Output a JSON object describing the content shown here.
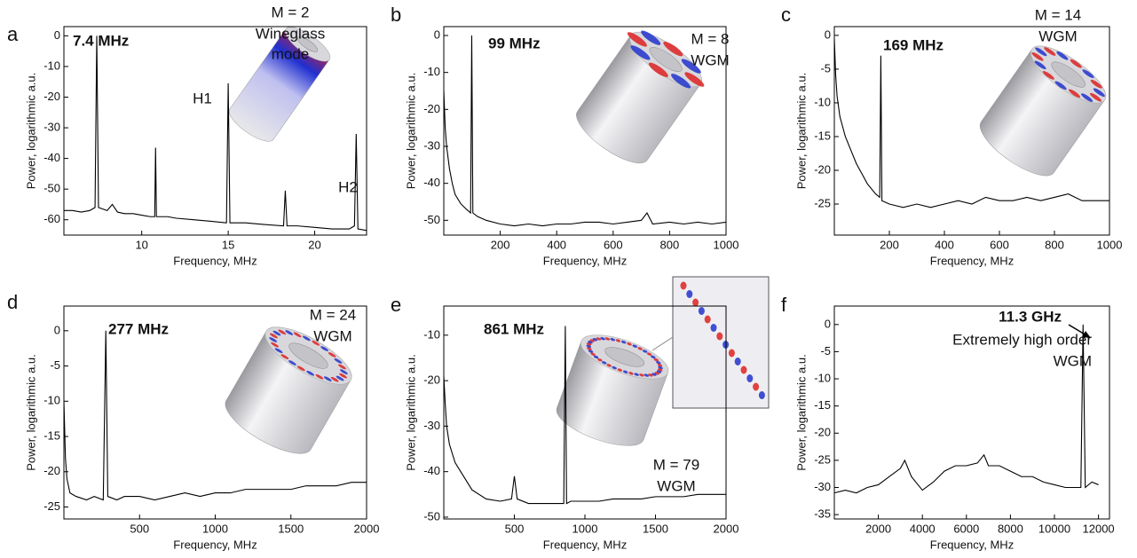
{
  "chart_data": [
    {
      "type": "line",
      "panel": "a",
      "peak_label": "7.4 MHz",
      "annotations": [
        "M = 2",
        "Wineglass",
        "mode",
        "H1",
        "H2"
      ],
      "x_label": "Frequency, MHz",
      "y_label": "Power, logarithmic a.u.",
      "x": [
        5.5,
        6,
        6.5,
        7,
        7.3,
        7.4,
        7.5,
        8,
        8.3,
        8.6,
        9,
        9.5,
        10,
        10.5,
        10.75,
        10.8,
        10.85,
        11.5,
        12,
        13,
        14,
        14.9,
        15,
        15.1,
        16,
        17,
        18.2,
        18.3,
        18.4,
        19,
        20,
        21,
        22,
        22.3,
        22.4,
        22.5,
        23
      ],
      "series": [
        {
          "color": "#000000",
          "values": [
            -57,
            -57,
            -57.5,
            -57,
            -56,
            0,
            -56,
            -57,
            -55,
            -57.5,
            -58,
            -58,
            -58.5,
            -59,
            -59,
            -36.5,
            -59,
            -59,
            -59.5,
            -60,
            -60.5,
            -61,
            -15.5,
            -61,
            -61,
            -61.5,
            -62,
            -50.5,
            -62,
            -62,
            -62.5,
            -63,
            -63,
            -62,
            -32,
            -63,
            -63.5
          ]
        }
      ],
      "xlim": [
        5.5,
        23
      ],
      "ylim": [
        -65,
        3
      ],
      "xticks": [
        10,
        15,
        20
      ],
      "yticks": [
        0,
        -10,
        -20,
        -30,
        -40,
        -50,
        -60
      ]
    },
    {
      "type": "line",
      "panel": "b",
      "peak_label": "99 MHz",
      "annotations": [
        "M = 8",
        "WGM"
      ],
      "x_label": "Frequency, MHz",
      "y_label": "Power, logarithmic a.u.",
      "x": [
        0,
        5,
        10,
        20,
        30,
        40,
        60,
        80,
        95,
        99,
        103,
        120,
        150,
        200,
        250,
        300,
        350,
        400,
        450,
        500,
        550,
        600,
        650,
        700,
        720,
        740,
        800,
        850,
        900,
        950,
        1000
      ],
      "series": [
        {
          "color": "#000000",
          "values": [
            -15,
            -25,
            -30,
            -36,
            -40,
            -43,
            -45.5,
            -47,
            -48,
            0,
            -48,
            -49,
            -50,
            -51,
            -51.5,
            -51,
            -51.5,
            -51,
            -51,
            -50.5,
            -50.5,
            -51,
            -50.5,
            -50,
            -48,
            -51,
            -50.5,
            -51,
            -50.5,
            -51,
            -50.5
          ]
        }
      ],
      "xlim": [
        0,
        1000
      ],
      "ylim": [
        -54,
        2.4
      ],
      "xticks": [
        200,
        400,
        600,
        800,
        1000
      ],
      "yticks": [
        0,
        -10,
        -20,
        -30,
        -40,
        -50
      ]
    },
    {
      "type": "line",
      "panel": "c",
      "peak_label": "169 MHz",
      "annotations": [
        "M = 14",
        "WGM"
      ],
      "x_label": "Frequency, MHz",
      "y_label": "Power, logarithmic a.u.",
      "x": [
        0,
        5,
        10,
        20,
        40,
        60,
        80,
        100,
        120,
        150,
        165,
        169,
        173,
        200,
        250,
        300,
        350,
        400,
        450,
        500,
        550,
        600,
        650,
        700,
        750,
        800,
        850,
        900,
        950,
        1000
      ],
      "series": [
        {
          "color": "#000000",
          "values": [
            -0.5,
            -6,
            -9,
            -12,
            -15,
            -17,
            -19,
            -20.5,
            -22,
            -23.5,
            -24,
            -3,
            -24.5,
            -25,
            -25.5,
            -25,
            -25.5,
            -25,
            -24.5,
            -25,
            -24,
            -24.5,
            -24.5,
            -24,
            -24.5,
            -24,
            -23.5,
            -24.5,
            -24.5,
            -24.5
          ]
        }
      ],
      "xlim": [
        0,
        1000
      ],
      "ylim": [
        -29.6,
        1.3
      ],
      "xticks": [
        200,
        400,
        600,
        800,
        1000
      ],
      "yticks": [
        0,
        -5,
        -10,
        -15,
        -20,
        -25
      ]
    },
    {
      "type": "line",
      "panel": "d",
      "peak_label": "277 MHz",
      "annotations": [
        "M = 24",
        "WGM"
      ],
      "x_label": "Frequency, MHz",
      "y_label": "Power, logarithmic a.u.",
      "x": [
        0,
        10,
        20,
        40,
        80,
        150,
        200,
        260,
        277,
        290,
        350,
        400,
        500,
        600,
        700,
        800,
        900,
        1000,
        1100,
        1200,
        1300,
        1400,
        1500,
        1600,
        1700,
        1800,
        1900,
        2000
      ],
      "series": [
        {
          "color": "#000000",
          "values": [
            -10,
            -18,
            -21,
            -23,
            -23.5,
            -24,
            -23.5,
            -24,
            0,
            -23.5,
            -24,
            -23.5,
            -23.5,
            -24,
            -23.5,
            -23,
            -23.5,
            -23,
            -23,
            -22.5,
            -22.5,
            -22.5,
            -22.5,
            -22,
            -22,
            -22,
            -21.5,
            -21.5
          ]
        }
      ],
      "xlim": [
        0,
        2000
      ],
      "ylim": [
        -26.7,
        3.5
      ],
      "xticks": [
        500,
        1000,
        1500,
        2000
      ],
      "yticks": [
        0,
        -5,
        -10,
        -15,
        -20,
        -25
      ]
    },
    {
      "type": "line",
      "panel": "e",
      "peak_label": "861 MHz",
      "annotations": [
        "M = 79",
        "WGM"
      ],
      "x_label": "Frequency, MHz",
      "y_label": "Power, logarithmic a.u.",
      "x": [
        0,
        10,
        20,
        40,
        80,
        120,
        200,
        300,
        400,
        480,
        500,
        520,
        600,
        700,
        800,
        850,
        861,
        870,
        900,
        1000,
        1100,
        1200,
        1300,
        1400,
        1500,
        1600,
        1700,
        1800,
        1900,
        2000
      ],
      "series": [
        {
          "color": "#000000",
          "values": [
            -19,
            -25,
            -30,
            -34,
            -38,
            -40,
            -44,
            -46,
            -46.5,
            -46,
            -41,
            -46,
            -47,
            -47,
            -47,
            -47,
            -8,
            -47,
            -46.5,
            -46.5,
            -46.5,
            -46,
            -46,
            -46,
            -45.5,
            -45.5,
            -45.5,
            -45,
            -45,
            -45
          ]
        }
      ],
      "xlim": [
        0,
        2000
      ],
      "ylim": [
        -50.4,
        -3.6
      ],
      "xticks": [
        500,
        1000,
        1500,
        2000
      ],
      "yticks": [
        -10,
        -20,
        -30,
        -40,
        -50
      ]
    },
    {
      "type": "line",
      "panel": "f",
      "peak_label": "11.3 GHz",
      "annotations": [
        "Extremely high order",
        "WGM"
      ],
      "x_label": "Frequency, MHz",
      "y_label": "Power, logarithmic a.u.",
      "x": [
        0,
        500,
        1000,
        1500,
        2000,
        2500,
        3000,
        3200,
        3500,
        3800,
        4000,
        4500,
        5000,
        5500,
        6000,
        6500,
        6800,
        7000,
        7500,
        8000,
        8500,
        9000,
        9500,
        10000,
        10500,
        11000,
        11200,
        11300,
        11400,
        11700,
        12000
      ],
      "series": [
        {
          "color": "#000000",
          "values": [
            -31,
            -30.5,
            -31,
            -30,
            -29.5,
            -28,
            -26.5,
            -25,
            -28,
            -29.5,
            -30.5,
            -29,
            -27,
            -26,
            -26,
            -25.5,
            -24,
            -26,
            -26,
            -27,
            -28,
            -28,
            -29,
            -29.5,
            -30,
            -30,
            -30,
            0,
            -30,
            -29,
            -29.5
          ]
        }
      ],
      "xlim": [
        0,
        12500
      ],
      "ylim": [
        -35.8,
        3.4
      ],
      "xticks": [
        2000,
        4000,
        6000,
        8000,
        10000,
        12000
      ],
      "yticks": [
        0,
        -5,
        -10,
        -15,
        -20,
        -25,
        -30,
        -35
      ]
    }
  ]
}
